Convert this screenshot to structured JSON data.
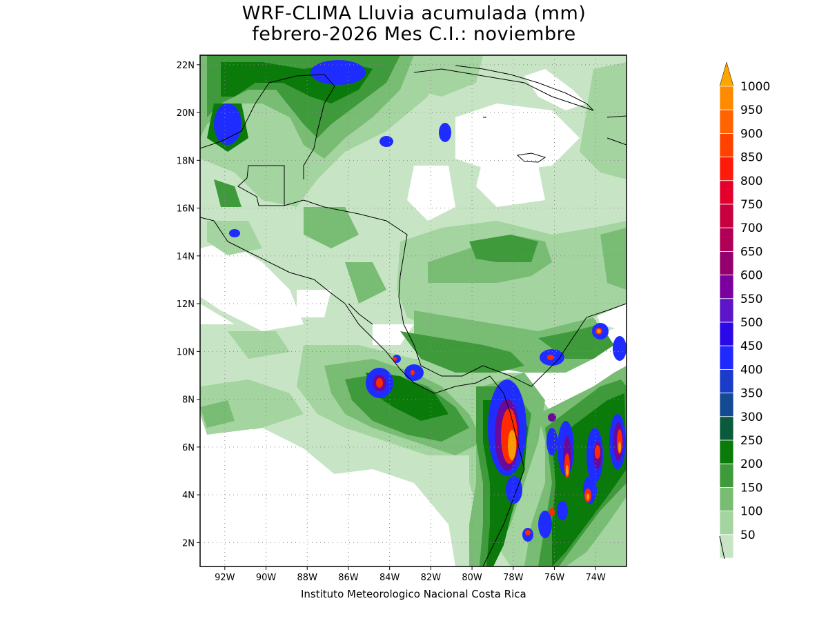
{
  "title": {
    "line1": "WRF-CLIMA Lluvia acumulada (mm)",
    "line2": "febrero-2026 Mes C.I.: noviembre"
  },
  "footer": "Instituto Meteorologico Nacional Costa Rica",
  "map": {
    "lat_range": [
      1,
      22.4
    ],
    "lon_range": [
      -93.2,
      -72.5
    ],
    "lat_ticks": [
      {
        "value": 2,
        "label": "2N"
      },
      {
        "value": 4,
        "label": "4N"
      },
      {
        "value": 6,
        "label": "6N"
      },
      {
        "value": 8,
        "label": "8N"
      },
      {
        "value": 10,
        "label": "10N"
      },
      {
        "value": 12,
        "label": "12N"
      },
      {
        "value": 14,
        "label": "14N"
      },
      {
        "value": 16,
        "label": "16N"
      },
      {
        "value": 18,
        "label": "18N"
      },
      {
        "value": 20,
        "label": "20N"
      },
      {
        "value": 22,
        "label": "22N"
      }
    ],
    "lon_ticks": [
      {
        "value": -92,
        "label": "92W"
      },
      {
        "value": -90,
        "label": "90W"
      },
      {
        "value": -88,
        "label": "88W"
      },
      {
        "value": -86,
        "label": "86W"
      },
      {
        "value": -84,
        "label": "84W"
      },
      {
        "value": -82,
        "label": "82W"
      },
      {
        "value": -80,
        "label": "80W"
      },
      {
        "value": -78,
        "label": "78W"
      },
      {
        "value": -76,
        "label": "76W"
      },
      {
        "value": -74,
        "label": "74W"
      }
    ],
    "grid": true,
    "colors": {
      "c50": "#c7e5c5",
      "c100": "#a4d49f",
      "c150": "#78bd73",
      "c200": "#3f9a3b",
      "c250": "#0a7a0a",
      "c300": "#0a5a3c",
      "c350": "#134a92",
      "c400": "#1a3cc8",
      "c450": "#1f2cff",
      "c500": "#2a12e0",
      "c550": "#3f10c4",
      "c600": "#5a0aa8",
      "c650": "#78088c",
      "c700": "#9a0870",
      "c750": "#bf0650",
      "c800": "#dd0a30",
      "c850": "#ff1e0a",
      "c900": "#ff4a00",
      "c950": "#ff6e00",
      "c1000": "#ff9a00"
    }
  },
  "colorbar": {
    "levels": [
      "1000",
      "950",
      "900",
      "850",
      "800",
      "750",
      "700",
      "650",
      "600",
      "550",
      "500",
      "450",
      "400",
      "350",
      "300",
      "250",
      "200",
      "150",
      "100",
      "50"
    ],
    "colors": [
      "#ff8a00",
      "#ff6400",
      "#ff4200",
      "#ff1a0a",
      "#e4002c",
      "#c80040",
      "#b00056",
      "#94006c",
      "#7a00a0",
      "#5c16c8",
      "#2a08e8",
      "#1f28ff",
      "#1a3cc8",
      "#134a92",
      "#0a5a3c",
      "#0a7a0a",
      "#3f9a3b",
      "#78bd73",
      "#a4d49f",
      "#c7e5c5"
    ],
    "arrow_color": "#ffa500"
  }
}
